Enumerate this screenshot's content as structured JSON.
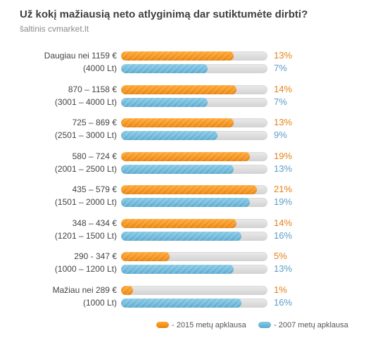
{
  "chart_data": {
    "type": "bar",
    "orientation": "horizontal",
    "title": "Už kokį mažiausią neto atlyginimą dar sutiktumėte dirbti?",
    "source": "šaltinis cvmarket.lt",
    "categories": [
      {
        "label_2015": "Daugiau nei 1159 €",
        "label_2007": "(4000 Lt)"
      },
      {
        "label_2015": "870 – 1158 €",
        "label_2007": "(3001 – 4000 Lt)"
      },
      {
        "label_2015": "725 – 869 €",
        "label_2007": "(2501 – 3000 Lt)"
      },
      {
        "label_2015": "580 – 724 €",
        "label_2007": "(2001 – 2500 Lt)"
      },
      {
        "label_2015": "435 – 579 €",
        "label_2007": "(1501 – 2000 Lt)"
      },
      {
        "label_2015": "348 – 434 €",
        "label_2007": "(1201 – 1500 Lt)"
      },
      {
        "label_2015": "290 - 347 €",
        "label_2007": "(1000 – 1200 Lt)"
      },
      {
        "label_2015": "Mažiau nei 289 €",
        "label_2007": "(1000 Lt)"
      }
    ],
    "series": [
      {
        "name": "- 2015 metų apklausa",
        "color": "#f28f1c",
        "values": [
          13,
          14,
          13,
          19,
          21,
          14,
          5,
          1
        ]
      },
      {
        "name": "- 2007 metų apklausa",
        "color": "#6ab4d8",
        "values": [
          7,
          7,
          9,
          13,
          19,
          16,
          13,
          16
        ]
      }
    ],
    "fill_fraction": {
      "2015": [
        0.77,
        0.79,
        0.77,
        0.88,
        0.93,
        0.79,
        0.33,
        0.08
      ],
      "2007": [
        0.59,
        0.59,
        0.66,
        0.77,
        0.88,
        0.82,
        0.77,
        0.82
      ]
    },
    "value_suffix": "%",
    "legend": "bottom-right",
    "grid": false
  }
}
